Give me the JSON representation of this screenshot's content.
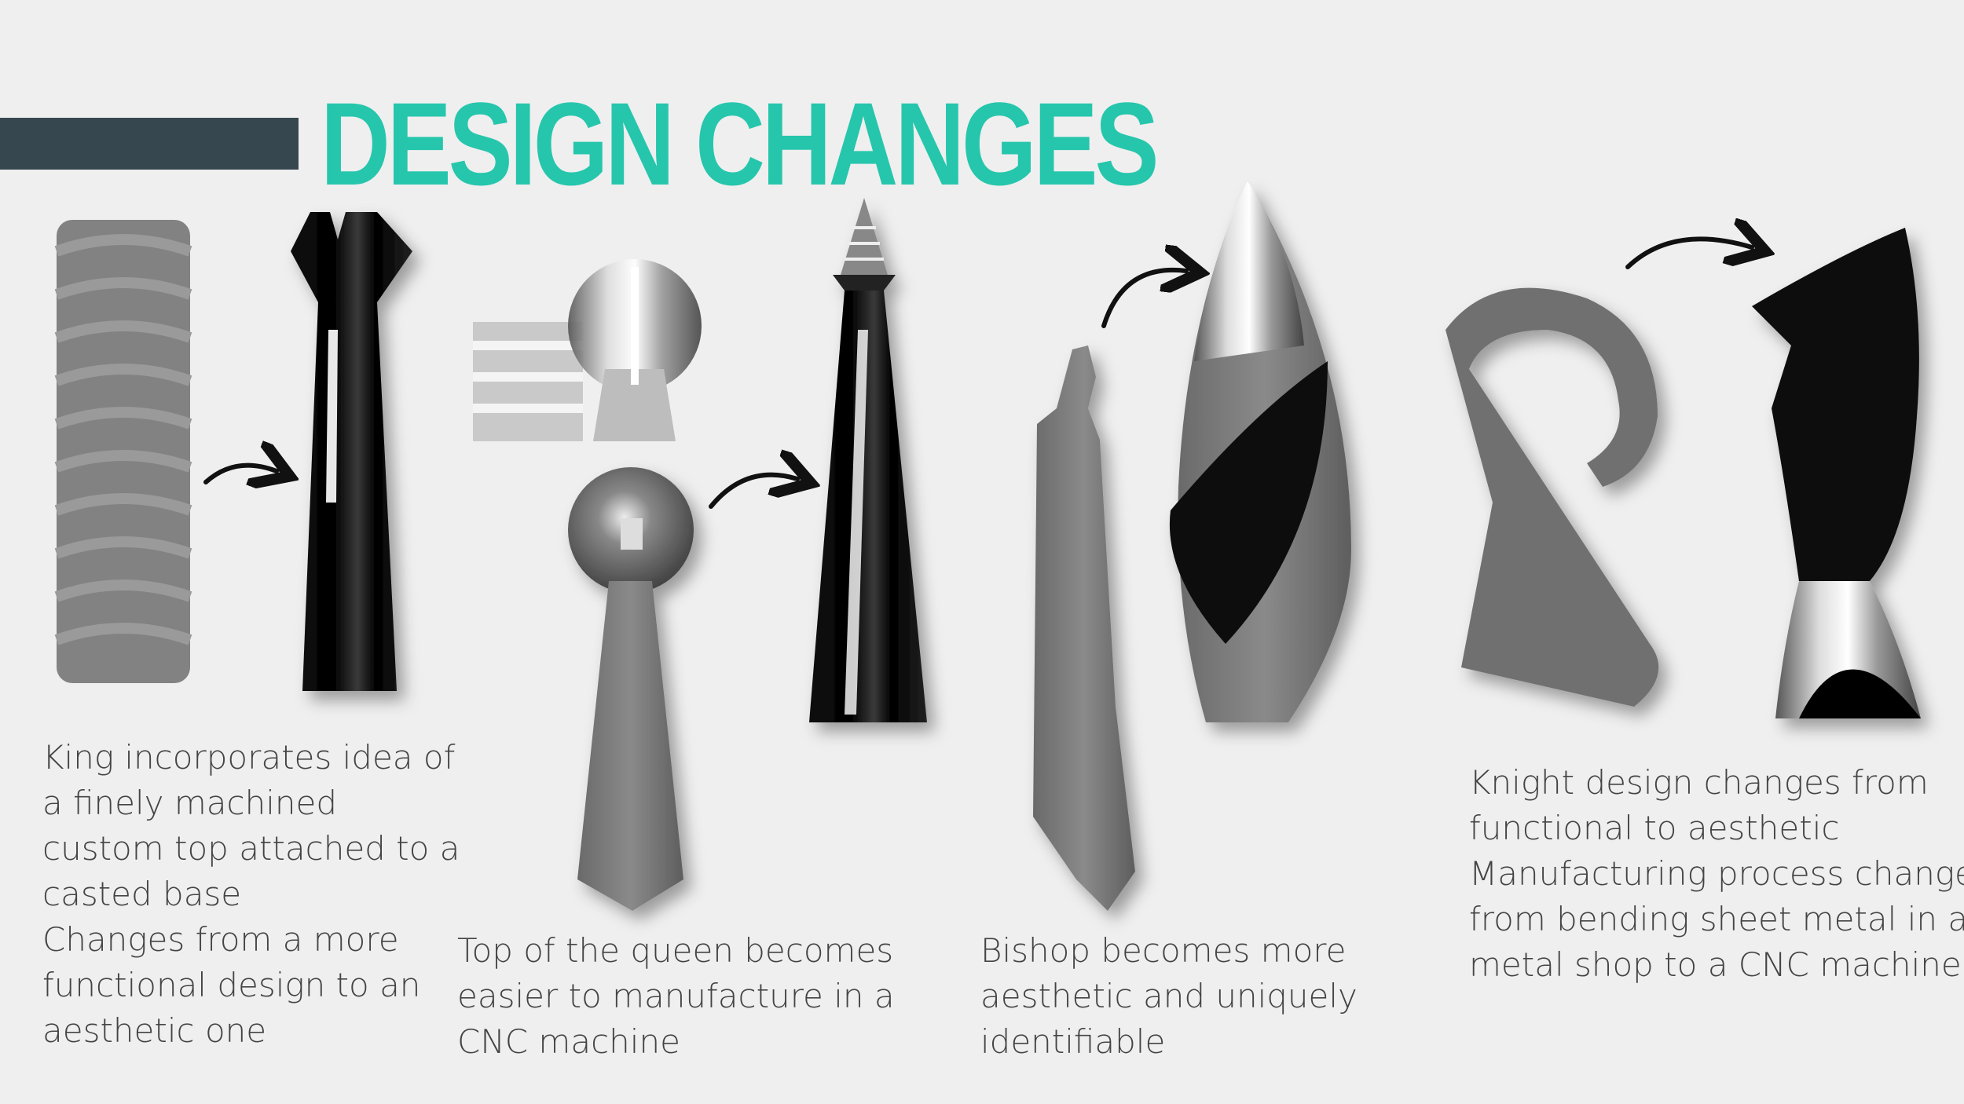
{
  "title": "DESIGN CHANGES",
  "colors": {
    "accent_bar": "#37474f",
    "title": "#26c6ac",
    "background": "#efefef"
  },
  "captions": {
    "king": [
      "King incorporates idea of",
      "a finely machined",
      "custom top attached to a",
      "casted base",
      "Changes from a more",
      "functional design to an",
      "aesthetic one"
    ],
    "queen": [
      "Top of the queen becomes",
      "easier to manufacture in a",
      "CNC machine"
    ],
    "bishop": [
      "Bishop becomes more",
      "aesthetic and uniquely",
      "identifiable"
    ],
    "knight": [
      "Knight design changes from",
      "functional to aesthetic",
      "Manufacturing process changes",
      "from bending sheet metal in a",
      "metal shop to a CNC machine"
    ]
  },
  "icons": [
    "arrow-right-icon"
  ]
}
